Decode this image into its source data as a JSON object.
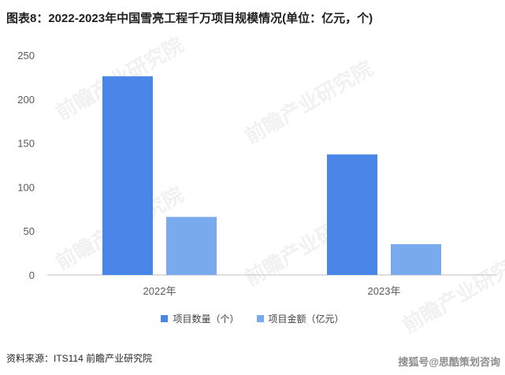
{
  "title": "图表8：2022-2023年中国雪亮工程千万项目规模情况(单位：亿元，个)",
  "source": "资料来源：ITS114 前瞻产业研究院",
  "corner_text": "搜狐号@思酷策划咨询",
  "watermark_text": "前瞻产业研究院",
  "colors": {
    "series1": "#4a86e8",
    "series2": "#7aaaee"
  },
  "chart_data": {
    "type": "bar",
    "title": "图表8：2022-2023年中国雪亮工程千万项目规模情况(单位：亿元，个)",
    "categories": [
      "2022年",
      "2023年"
    ],
    "series": [
      {
        "name": "项目数量（个）",
        "values": [
          226,
          137
        ]
      },
      {
        "name": "项目金额（亿元）",
        "values": [
          66,
          35
        ]
      }
    ],
    "xlabel": "",
    "ylabel": "",
    "ylim": [
      0,
      250
    ],
    "yticks": [
      0,
      50,
      100,
      150,
      200,
      250
    ],
    "grid": false,
    "legend": "bottom"
  }
}
